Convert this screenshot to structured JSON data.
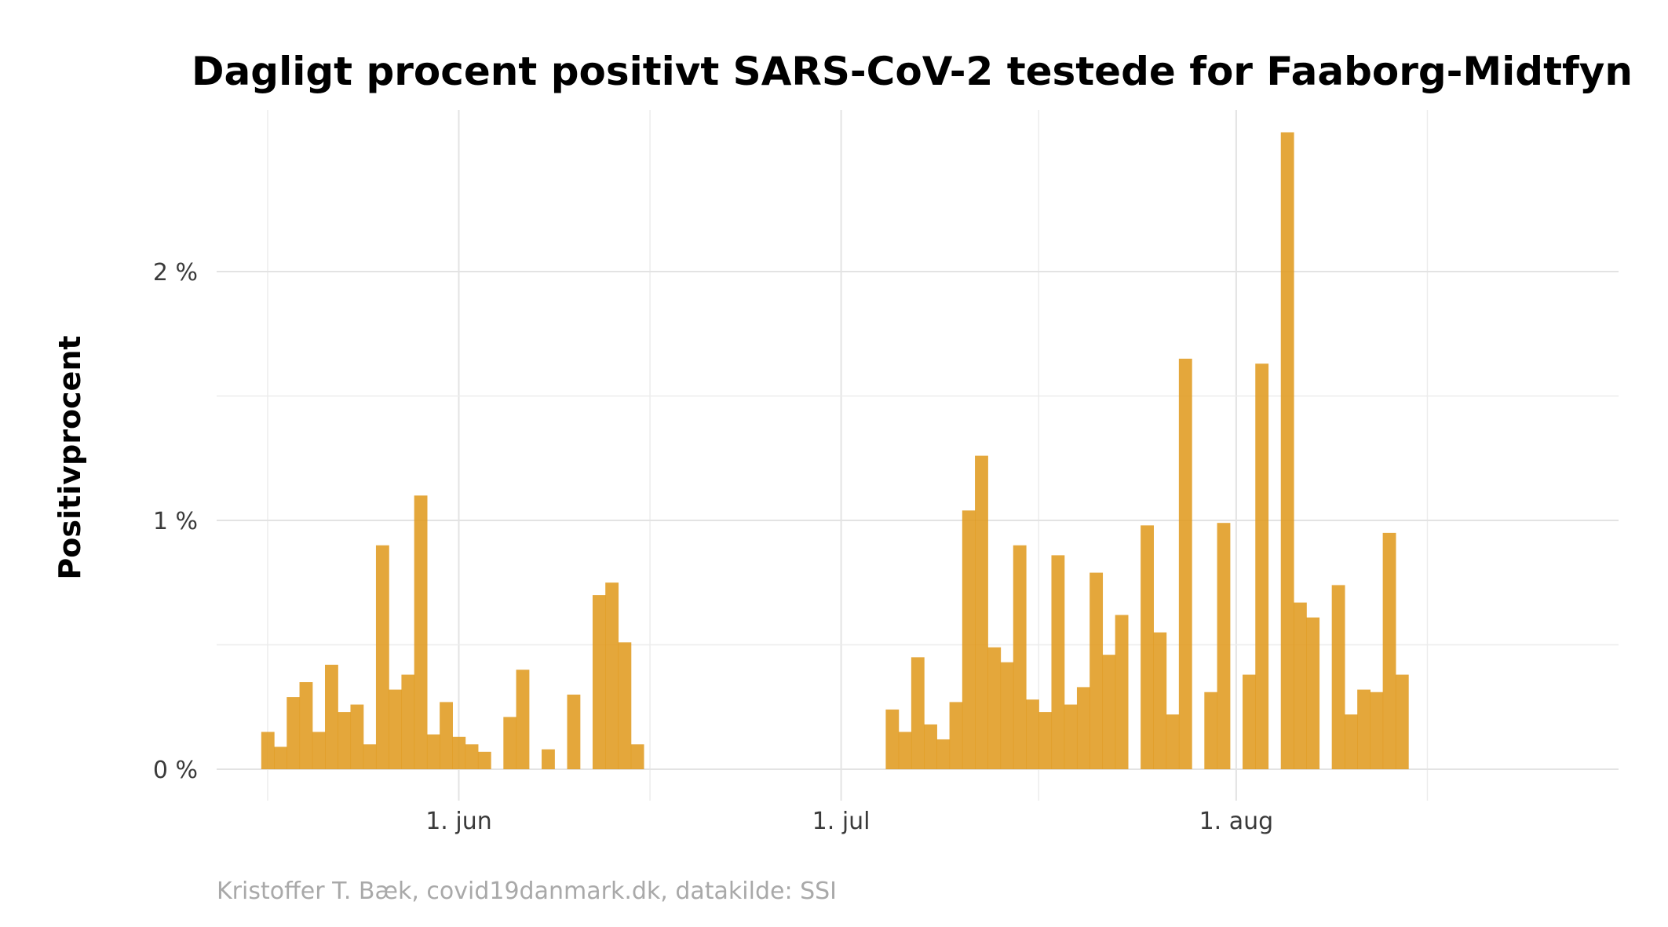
{
  "chart_data": {
    "type": "bar",
    "title": "Dagligt procent positivt SARS-CoV-2 testede for Faaborg-Midtfyn",
    "xlabel": "",
    "ylabel": "Positivprocent",
    "caption": "Kristoffer T. Bæk, covid19danmark.dk, datakilde: SSI",
    "bar_color": "#E09B20",
    "grid": true,
    "x_ticks": [
      {
        "date": "2020-06-01",
        "label": "1. jun"
      },
      {
        "date": "2020-07-01",
        "label": "1. jul"
      },
      {
        "date": "2020-08-01",
        "label": "1. aug"
      }
    ],
    "y_ticks": [
      {
        "value": 0,
        "label": "0 %"
      },
      {
        "value": 1,
        "label": "1 %"
      },
      {
        "value": 2,
        "label": "2 %"
      }
    ],
    "xlim": [
      "2020-05-13",
      "2020-08-31"
    ],
    "ylim": [
      0,
      2.65
    ],
    "x": [
      "2020-05-17",
      "2020-05-18",
      "2020-05-19",
      "2020-05-20",
      "2020-05-21",
      "2020-05-22",
      "2020-05-23",
      "2020-05-24",
      "2020-05-25",
      "2020-05-26",
      "2020-05-27",
      "2020-05-28",
      "2020-05-29",
      "2020-05-30",
      "2020-05-31",
      "2020-06-01",
      "2020-06-02",
      "2020-06-03",
      "2020-06-04",
      "2020-06-05",
      "2020-06-06",
      "2020-06-07",
      "2020-06-08",
      "2020-06-09",
      "2020-06-10",
      "2020-06-11",
      "2020-06-12",
      "2020-06-13",
      "2020-06-14",
      "2020-06-15",
      "2020-06-16",
      "2020-06-17",
      "2020-06-18",
      "2020-06-19",
      "2020-06-20",
      "2020-06-21",
      "2020-06-22",
      "2020-06-23",
      "2020-06-24",
      "2020-06-25",
      "2020-06-26",
      "2020-06-27",
      "2020-06-28",
      "2020-06-29",
      "2020-06-30",
      "2020-07-01",
      "2020-07-02",
      "2020-07-03",
      "2020-07-04",
      "2020-07-05",
      "2020-07-06",
      "2020-07-07",
      "2020-07-08",
      "2020-07-09",
      "2020-07-10",
      "2020-07-11",
      "2020-07-12",
      "2020-07-13",
      "2020-07-14",
      "2020-07-15",
      "2020-07-16",
      "2020-07-17",
      "2020-07-18",
      "2020-07-19",
      "2020-07-20",
      "2020-07-21",
      "2020-07-22",
      "2020-07-23",
      "2020-07-24",
      "2020-07-25",
      "2020-07-26",
      "2020-07-27",
      "2020-07-28",
      "2020-07-29",
      "2020-07-30",
      "2020-07-31",
      "2020-08-01",
      "2020-08-02",
      "2020-08-03",
      "2020-08-04",
      "2020-08-05",
      "2020-08-06",
      "2020-08-07",
      "2020-08-08",
      "2020-08-09",
      "2020-08-10",
      "2020-08-11",
      "2020-08-12",
      "2020-08-13",
      "2020-08-14",
      "2020-08-15"
    ],
    "values": [
      0.15,
      0.09,
      0.29,
      0.35,
      0.15,
      0.42,
      0.23,
      0.26,
      0.1,
      0.9,
      0.32,
      0.38,
      1.1,
      0.14,
      0.27,
      0.13,
      0.1,
      0.07,
      0.0,
      0.21,
      0.4,
      0.0,
      0.08,
      0.0,
      0.3,
      0.0,
      0.7,
      0.75,
      0.51,
      0.1,
      0.0,
      0.0,
      0.0,
      0.0,
      0.0,
      0.0,
      0.0,
      0.0,
      0.0,
      0.0,
      0.0,
      0.0,
      0.0,
      0.0,
      0.0,
      0.0,
      0.0,
      0.0,
      0.0,
      0.24,
      0.15,
      0.45,
      0.18,
      0.12,
      0.27,
      1.04,
      1.26,
      0.49,
      0.43,
      0.9,
      0.28,
      0.23,
      0.86,
      0.26,
      0.33,
      0.79,
      0.46,
      0.62,
      0.0,
      0.98,
      0.55,
      0.22,
      1.65,
      0.0,
      0.31,
      0.99,
      0.0,
      0.38,
      1.63,
      0.0,
      2.56,
      0.67,
      0.61,
      0.0,
      0.74,
      0.22,
      0.32,
      0.31,
      0.95,
      0.38,
      0.0
    ]
  }
}
